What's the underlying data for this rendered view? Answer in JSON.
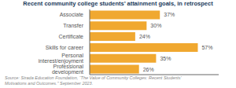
{
  "chart_data": {
    "type": "bar",
    "title": "Recent community college students’ attainment goals, in retrospect",
    "categories": [
      "Associate",
      "Transfer",
      "Certificate",
      "Skills for career",
      "Personal interest/enjoyment",
      "Professional development"
    ],
    "values": [
      37,
      30,
      24,
      57,
      35,
      26
    ],
    "value_labels": [
      "37%",
      "30%",
      "24%",
      "57%",
      "35%",
      "26%"
    ],
    "color": "#F0A830",
    "orientation": "horizontal",
    "xlim": [
      0,
      68
    ],
    "data_labels": true,
    "tick_labels": "y",
    "grid": false,
    "annotations": [
      "Source: Strada Education Foundation, “The Value of Community Colleges: Recent Students’\nMotivations and Outcomes.” September 2023."
    ]
  }
}
